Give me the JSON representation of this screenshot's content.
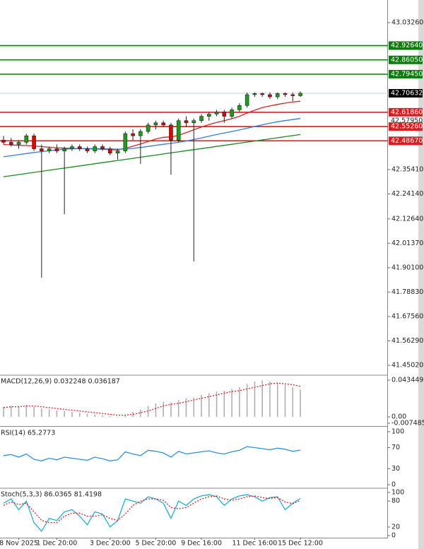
{
  "chart_data": [
    {
      "type": "candlestick",
      "categories": [
        null,
        null,
        "8 Nov 2025",
        null,
        null,
        null,
        null,
        "1 Dec 20:00",
        null,
        null,
        null,
        null,
        null,
        null,
        "3 Dec 20:00",
        null,
        null,
        null,
        null,
        null,
        "5 Dec 20:00",
        null,
        null,
        null,
        null,
        null,
        "9 Dec 16:00",
        null,
        null,
        null,
        null,
        null,
        null,
        "11 Dec 16:00",
        null,
        null,
        null,
        null,
        null,
        "15 Dec 12:00"
      ],
      "open": [
        42.49,
        42.48,
        42.47,
        42.48,
        42.51,
        42.45,
        42.44,
        42.45,
        42.44,
        42.45,
        42.46,
        42.45,
        42.44,
        42.46,
        42.45,
        42.43,
        42.44,
        42.52,
        42.51,
        42.53,
        42.56,
        42.57,
        42.56,
        42.49,
        42.58,
        42.57,
        42.58,
        42.6,
        42.61,
        42.62,
        42.6,
        42.63,
        42.65,
        42.7,
        42.705,
        42.7,
        42.69,
        42.705,
        42.7,
        42.695
      ],
      "high": [
        42.51,
        42.5,
        42.49,
        42.52,
        42.52,
        42.47,
        42.46,
        42.47,
        42.46,
        42.47,
        42.47,
        42.46,
        42.47,
        42.47,
        42.46,
        42.45,
        42.53,
        42.54,
        42.54,
        42.57,
        42.58,
        42.58,
        42.57,
        42.59,
        42.6,
        42.59,
        42.61,
        42.62,
        42.63,
        42.63,
        42.64,
        42.66,
        42.71,
        42.71,
        42.71,
        42.71,
        42.71,
        42.71,
        42.71,
        42.715
      ],
      "low": [
        42.47,
        42.46,
        42.45,
        42.47,
        42.44,
        41.855,
        42.43,
        42.43,
        42.148,
        42.44,
        42.44,
        42.43,
        42.43,
        42.44,
        42.42,
        42.4,
        42.43,
        42.49,
        42.38,
        42.52,
        42.54,
        42.55,
        42.33,
        42.48,
        42.55,
        41.93,
        42.57,
        42.58,
        42.6,
        42.57,
        42.59,
        42.62,
        42.64,
        42.69,
        42.69,
        42.68,
        42.68,
        42.69,
        42.67,
        42.69
      ],
      "close": [
        42.48,
        42.47,
        42.48,
        42.51,
        42.45,
        42.44,
        42.45,
        42.44,
        42.45,
        42.46,
        42.45,
        42.44,
        42.46,
        42.45,
        42.43,
        42.44,
        42.52,
        42.51,
        42.53,
        42.56,
        42.57,
        42.56,
        42.49,
        42.58,
        42.57,
        42.58,
        42.6,
        42.61,
        42.62,
        42.6,
        42.63,
        42.65,
        42.7,
        42.705,
        42.7,
        42.69,
        42.705,
        42.7,
        42.695,
        42.70632
      ],
      "up_color": "#1a9e1a",
      "down_color": "#e00000",
      "series": [
        {
          "color": "#e02020",
          "values": [
            42.47,
            42.468,
            42.466,
            42.465,
            42.463,
            42.46,
            42.457,
            42.455,
            42.453,
            42.452,
            42.451,
            42.45,
            42.449,
            42.448,
            42.446,
            42.445,
            42.452,
            42.462,
            42.472,
            42.484,
            42.495,
            42.503,
            42.505,
            42.512,
            42.525,
            42.538,
            42.55,
            42.562,
            42.572,
            42.58,
            42.589,
            42.6,
            42.615,
            42.628,
            42.64,
            42.648,
            42.655,
            42.661,
            42.666,
            42.67
          ]
        },
        {
          "color": "#2f7fe0",
          "values": [
            42.413,
            42.418,
            42.423,
            42.428,
            42.433,
            42.437,
            42.441,
            42.445,
            42.448,
            42.45,
            42.451,
            42.451,
            42.451,
            42.45,
            42.449,
            42.448,
            42.449,
            42.452,
            42.456,
            42.461,
            42.466,
            42.471,
            42.475,
            42.48,
            42.486,
            42.493,
            42.5,
            42.508,
            42.516,
            42.523,
            42.53,
            42.537,
            42.545,
            42.553,
            42.561,
            42.568,
            42.575,
            42.58,
            42.585,
            42.59
          ]
        },
        {
          "color": "#1a8a1a",
          "values": [
            42.321,
            42.326,
            42.331,
            42.336,
            42.341,
            42.346,
            42.351,
            42.356,
            42.361,
            42.366,
            42.371,
            42.376,
            42.381,
            42.386,
            42.391,
            42.396,
            42.401,
            42.406,
            42.411,
            42.416,
            42.421,
            42.426,
            42.431,
            42.436,
            42.441,
            42.446,
            42.451,
            42.456,
            42.461,
            42.466,
            42.471,
            42.476,
            42.481,
            42.486,
            42.491,
            42.496,
            42.501,
            42.506,
            42.511,
            42.516
          ]
        }
      ],
      "ylim": [
        41.408,
        43.137
      ],
      "yticks": [
        {
          "value": 43.0326,
          "label": "43.03260"
        },
        {
          "value": 42.3541,
          "label": "42.35410"
        },
        {
          "value": 42.2414,
          "label": "42.24140"
        },
        {
          "value": 42.1264,
          "label": "42.12640"
        },
        {
          "value": 42.0137,
          "label": "42.01370"
        },
        {
          "value": 41.901,
          "label": "41.90100"
        },
        {
          "value": 41.7883,
          "label": "41.78830"
        },
        {
          "value": 41.6756,
          "label": "41.67560"
        },
        {
          "value": 41.5629,
          "label": "41.56290"
        },
        {
          "value": 41.4502,
          "label": "41.45020"
        }
      ],
      "levels": [
        {
          "value": 42.9264,
          "label": "42.92640",
          "color": "#0a7d0a",
          "line_color": "#0a7d0a"
        },
        {
          "value": 42.8605,
          "label": "42.86050",
          "color": "#0a7d0a",
          "line_color": "#0a7d0a"
        },
        {
          "value": 42.7945,
          "label": "42.79450",
          "color": "#0a7d0a",
          "line_color": "#0a7d0a"
        },
        {
          "value": 42.70632,
          "label": "42.70632",
          "color": "#000000",
          "line_color": "#c8d2e6"
        },
        {
          "value": 42.6186,
          "label": "42.61860",
          "color": "#d81e1e",
          "line_color": "#d81e1e"
        },
        {
          "value": 42.5795,
          "label": "42.57950",
          "color": "#ffffff"
        },
        {
          "value": 42.5526,
          "label": "42.55260",
          "color": "#d81e1e",
          "line_color": "#d81e1e"
        },
        {
          "value": 42.4867,
          "label": "42.48670",
          "color": "#d81e1e",
          "line_color": "#d81e1e"
        }
      ]
    },
    {
      "type": "macd",
      "title": "MACD(12,26,9) 0.032248 0.036187",
      "bar_color": "#b0b0b0",
      "values": [
        0.012,
        0.013,
        0.013,
        0.014,
        0.012,
        0.01,
        0.009,
        0.008,
        0.007,
        0.006,
        0.005,
        0.004,
        0.003,
        0.002,
        0.001,
        0.0,
        0.002,
        0.006,
        0.009,
        0.013,
        0.016,
        0.018,
        0.017,
        0.02,
        0.022,
        0.023,
        0.026,
        0.028,
        0.03,
        0.031,
        0.033,
        0.035,
        0.039,
        0.042,
        0.043,
        0.042,
        0.04,
        0.038,
        0.035,
        0.032248
      ],
      "series": [
        {
          "color": "#e02020",
          "dash": true,
          "values": [
            0.011,
            0.012,
            0.012,
            0.013,
            0.013,
            0.012,
            0.011,
            0.01,
            0.009,
            0.008,
            0.007,
            0.006,
            0.005,
            0.004,
            0.003,
            0.002,
            0.002,
            0.003,
            0.005,
            0.007,
            0.01,
            0.013,
            0.015,
            0.016,
            0.018,
            0.02,
            0.022,
            0.024,
            0.026,
            0.028,
            0.03,
            0.031,
            0.033,
            0.035,
            0.037,
            0.039,
            0.04,
            0.039,
            0.038,
            0.036187
          ]
        }
      ],
      "ylim": [
        -0.00999,
        0.04846
      ],
      "yticks": [
        0.043449,
        {
          "value": 0,
          "label": "0.00"
        },
        -0.007485
      ]
    },
    {
      "type": "line",
      "title": "RSI(14) 65.2773",
      "series": [
        {
          "color": "#2f8fe0",
          "values": [
            55,
            57,
            52,
            58,
            48,
            45,
            50,
            47,
            52,
            50,
            48,
            46,
            52,
            49,
            45,
            47,
            62,
            58,
            55,
            65,
            63,
            60,
            52,
            63,
            58,
            60,
            62,
            64,
            60,
            58,
            62,
            65,
            72,
            70,
            68,
            66,
            69,
            67,
            63,
            65.2773
          ]
        }
      ],
      "ylim": [
        -5.3,
        108
      ],
      "yticks": [
        100,
        70,
        30,
        0
      ]
    },
    {
      "type": "line",
      "title": "Stoch(5,3,3) 86.0365 81.4198",
      "series": [
        {
          "color": "#22b0c8",
          "values": [
            75,
            85,
            60,
            80,
            30,
            10,
            40,
            35,
            55,
            60,
            45,
            25,
            55,
            50,
            20,
            35,
            85,
            80,
            75,
            90,
            85,
            75,
            40,
            80,
            70,
            85,
            92,
            95,
            90,
            70,
            85,
            92,
            95,
            90,
            80,
            88,
            90,
            60,
            75,
            86.0365
          ]
        },
        {
          "color": "#e02020",
          "dash": true,
          "values": [
            70,
            78,
            72,
            75,
            55,
            35,
            30,
            30,
            45,
            52,
            52,
            45,
            45,
            48,
            40,
            35,
            50,
            70,
            80,
            85,
            85,
            82,
            65,
            62,
            65,
            75,
            85,
            90,
            92,
            85,
            82,
            85,
            90,
            92,
            88,
            86,
            88,
            78,
            74,
            81.4198
          ]
        }
      ],
      "ylim": [
        -3.3,
        108.2
      ],
      "yticks": [
        100,
        80,
        20,
        0
      ]
    }
  ]
}
